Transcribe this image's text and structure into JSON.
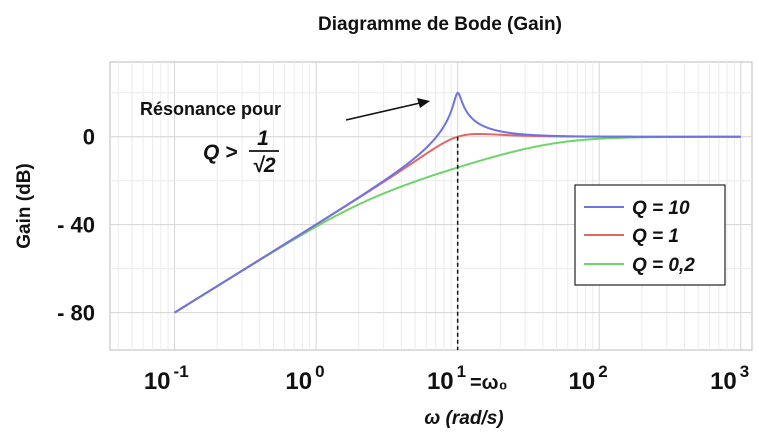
{
  "chart_data": {
    "type": "line",
    "title": "Diagramme de Bode (Gain)",
    "xlabel": "ω (rad/s)",
    "ylabel": "Gain (dB)",
    "xscale": "log",
    "xlim": [
      0.035,
      1200
    ],
    "ylim": [
      -97,
      34
    ],
    "y_ticks": [
      {
        "value": 0,
        "label": "0"
      },
      {
        "value": -40,
        "label": "- 40"
      },
      {
        "value": -80,
        "label": "- 80"
      }
    ],
    "x_ticks": [
      {
        "value": 0.1,
        "base": "10",
        "exp": "-1"
      },
      {
        "value": 1,
        "base": "10",
        "exp": "0"
      },
      {
        "value": 10,
        "base": "10",
        "exp": "1"
      },
      {
        "value": 100,
        "base": "10",
        "exp": "2"
      },
      {
        "value": 1000,
        "base": "10",
        "exp": "3"
      }
    ],
    "omega0": 10,
    "omega0_label": "=ω₀",
    "grid": true,
    "legend_position": "right",
    "series": [
      {
        "name": "Q = 10",
        "Q": 10,
        "color": "#6f73e0"
      },
      {
        "name": "Q = 1",
        "Q": 1,
        "color": "#e06868"
      },
      {
        "name": "Q = 0,2",
        "Q": 0.2,
        "color": "#6ed46a"
      }
    ],
    "x_range": [
      0.1,
      1000
    ],
    "annotation": {
      "text": "Résonance pour",
      "expr_prefix": "Q >",
      "fraction_num": "1",
      "fraction_den": "√2"
    }
  }
}
